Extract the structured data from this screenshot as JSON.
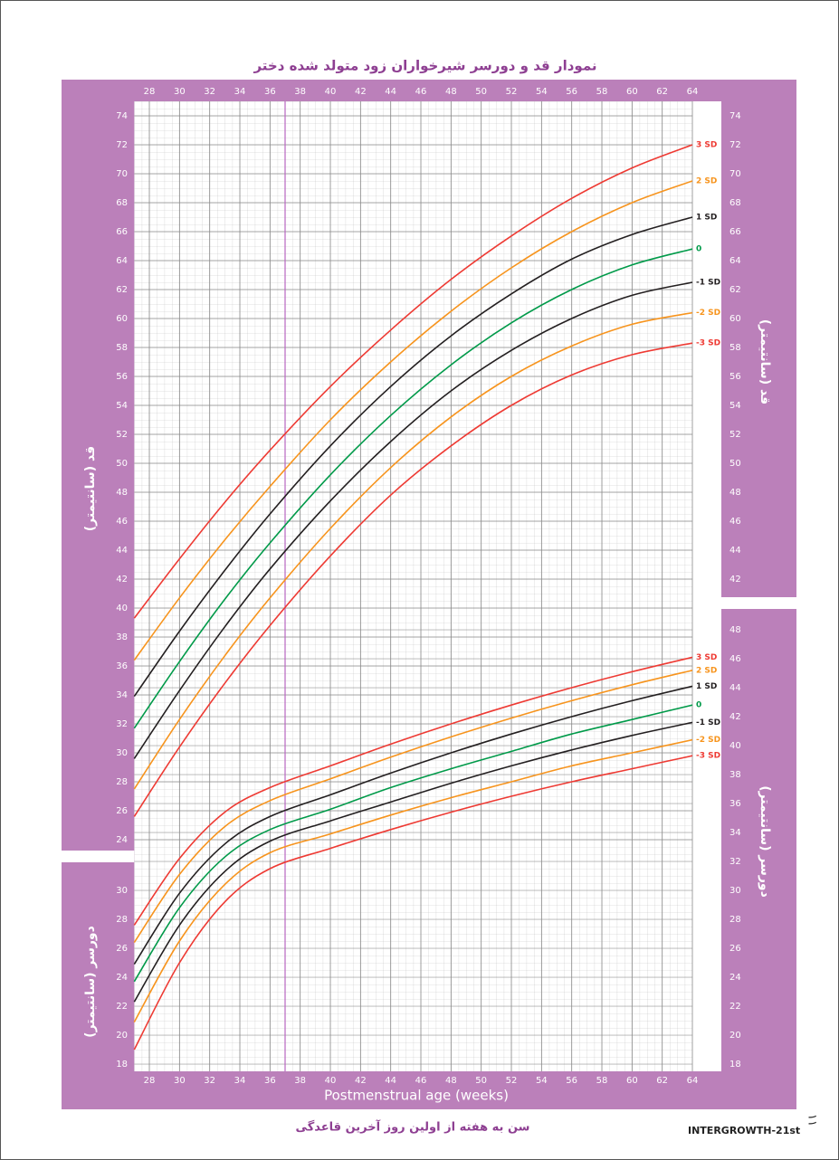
{
  "chart_data": {
    "type": "line",
    "title": "نمودار قد و دورسر شیرخواران زود متولد شده دختر",
    "xlabel": "Postmenstrual age (weeks)",
    "xlabel_fa": "سن به هفته از اولین روز آخرین قاعدگی",
    "ylabel": "قد (سانتیمتر)",
    "y2label": "دورسر (سانتیمتر)",
    "footer": "INTERGROWTH-21st",
    "page_number": "۱۱",
    "x": [
      27,
      30,
      33,
      36,
      40,
      44,
      48,
      52,
      56,
      60,
      64
    ],
    "xlim": [
      27,
      64
    ],
    "xticks": [
      28,
      30,
      32,
      34,
      36,
      38,
      40,
      42,
      44,
      46,
      48,
      50,
      52,
      54,
      56,
      58,
      60,
      62,
      64
    ],
    "ylim": [
      8,
      75
    ],
    "yticks": [
      24,
      26,
      28,
      30,
      32,
      34,
      36,
      38,
      40,
      42,
      44,
      46,
      48,
      50,
      52,
      54,
      56,
      58,
      60,
      62,
      64,
      66,
      68,
      70,
      72,
      74
    ],
    "yticks_right": [
      42,
      44,
      46,
      48,
      50,
      52,
      54,
      56,
      58,
      60,
      62,
      64,
      66,
      68,
      70,
      72,
      74
    ],
    "y2lim": [
      17.5,
      84.5
    ],
    "y2ticks": [
      18,
      20,
      22,
      24,
      26,
      28,
      30,
      32,
      34,
      36,
      38,
      40,
      42,
      44,
      46,
      48
    ],
    "y2ticks_left": [
      18,
      20,
      22,
      24,
      26,
      28,
      30
    ],
    "grid": true,
    "marker_x": 37,
    "series": [
      {
        "name": "3 SD",
        "color": "#ee3a33",
        "values": [
          39.3,
          43.4,
          47.3,
          50.9,
          55.3,
          59.2,
          62.7,
          65.7,
          68.3,
          70.4,
          72.0
        ]
      },
      {
        "name": "2 SD",
        "color": "#f7941d",
        "values": [
          36.4,
          40.7,
          44.7,
          48.4,
          53.0,
          57.0,
          60.5,
          63.5,
          66.0,
          68.0,
          69.5
        ]
      },
      {
        "name": "1 SD",
        "color": "#231f20",
        "values": [
          33.9,
          38.4,
          42.6,
          46.5,
          51.2,
          55.3,
          58.8,
          61.7,
          64.1,
          65.8,
          67.0
        ]
      },
      {
        "name": "0",
        "color": "#009a49",
        "values": [
          31.7,
          36.3,
          40.6,
          44.5,
          49.2,
          53.3,
          56.8,
          59.7,
          62.0,
          63.7,
          64.8
        ]
      },
      {
        "name": "-1 SD",
        "color": "#231f20",
        "values": [
          29.6,
          34.3,
          38.7,
          42.7,
          47.4,
          51.5,
          55.0,
          57.8,
          60.0,
          61.6,
          62.5
        ]
      },
      {
        "name": "-2 SD",
        "color": "#f7941d",
        "values": [
          27.5,
          32.3,
          36.7,
          40.7,
          45.5,
          49.7,
          53.2,
          56.0,
          58.1,
          59.6,
          60.4
        ]
      },
      {
        "name": "-3 SD",
        "color": "#ee3a33",
        "values": [
          25.6,
          30.4,
          34.8,
          38.8,
          43.6,
          47.8,
          51.2,
          54.0,
          56.1,
          57.5,
          58.3
        ]
      },
      {
        "name": "3 SD",
        "color": "#ee3a33",
        "axis": "y2",
        "values": [
          27.6,
          32.2,
          35.4,
          37.1,
          38.6,
          40.1,
          41.5,
          42.8,
          44.0,
          45.1,
          46.1
        ]
      },
      {
        "name": "2 SD",
        "color": "#f7941d",
        "axis": "y2",
        "values": [
          26.4,
          31.1,
          34.4,
          36.2,
          37.7,
          39.2,
          40.6,
          41.9,
          43.1,
          44.2,
          45.2
        ]
      },
      {
        "name": "1 SD",
        "color": "#231f20",
        "axis": "y2",
        "values": [
          24.9,
          29.8,
          33.2,
          35.1,
          36.6,
          38.1,
          39.5,
          40.8,
          42.0,
          43.1,
          44.1
        ]
      },
      {
        "name": "0",
        "color": "#009a49",
        "axis": "y2",
        "values": [
          23.7,
          28.8,
          32.3,
          34.2,
          35.6,
          37.1,
          38.4,
          39.6,
          40.8,
          41.8,
          42.8
        ]
      },
      {
        "name": "-1 SD",
        "color": "#231f20",
        "axis": "y2",
        "values": [
          22.3,
          27.6,
          31.3,
          33.4,
          34.8,
          36.1,
          37.4,
          38.6,
          39.7,
          40.7,
          41.6
        ]
      },
      {
        "name": "-2 SD",
        "color": "#f7941d",
        "axis": "y2",
        "values": [
          20.9,
          26.5,
          30.4,
          32.6,
          33.9,
          35.2,
          36.4,
          37.5,
          38.6,
          39.5,
          40.4
        ]
      },
      {
        "name": "-3 SD",
        "color": "#ee3a33",
        "axis": "y2",
        "values": [
          19.0,
          25.0,
          29.2,
          31.5,
          32.9,
          34.2,
          35.4,
          36.5,
          37.5,
          38.4,
          39.3
        ]
      }
    ]
  }
}
